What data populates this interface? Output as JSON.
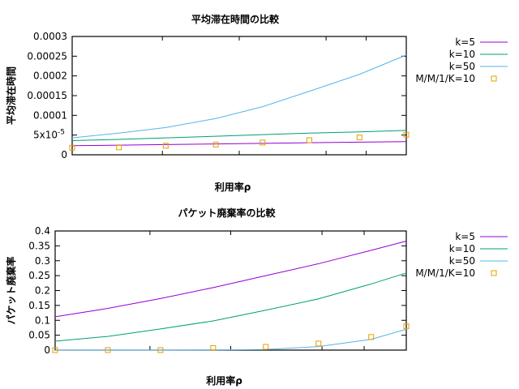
{
  "chart_data": [
    {
      "type": "line",
      "title": "平均滞在時間の比較",
      "xlabel": "利用率ρ",
      "ylabel": "平均滞在時間",
      "ylim": [
        0,
        0.0003
      ],
      "xlim": [
        0,
        1
      ],
      "yticks": [
        {
          "v": 0,
          "label": "0"
        },
        {
          "v": 5e-05,
          "label": "5x10",
          "sup": "-5"
        },
        {
          "v": 0.0001,
          "label": "0.0001"
        },
        {
          "v": 0.00015,
          "label": "0.00015"
        },
        {
          "v": 0.0002,
          "label": "0.0002"
        },
        {
          "v": 0.00025,
          "label": "0.00025"
        },
        {
          "v": 0.0003,
          "label": "0.0003"
        }
      ],
      "xticks": [
        0,
        0.27,
        0.5,
        0.76,
        0.88
      ],
      "legend_position": "top-right outside",
      "grid": false,
      "series": [
        {
          "name": "k=5",
          "color": "#9400d3",
          "style": "line",
          "x": [
            0,
            0.14,
            0.28,
            0.43,
            0.57,
            0.71,
            0.86,
            1.0
          ],
          "y": [
            2.3e-05,
            2.45e-05,
            2.6e-05,
            2.75e-05,
            2.9e-05,
            3.05e-05,
            3.2e-05,
            3.35e-05
          ]
        },
        {
          "name": "k=10",
          "color": "#009e73",
          "style": "line",
          "x": [
            0,
            0.14,
            0.28,
            0.43,
            0.57,
            0.71,
            0.86,
            1.0
          ],
          "y": [
            3.6e-05,
            3.9e-05,
            4.3e-05,
            4.7e-05,
            5.1e-05,
            5.5e-05,
            5.8e-05,
            6.2e-05
          ]
        },
        {
          "name": "k=50",
          "color": "#56b4e9",
          "style": "line",
          "x": [
            0,
            0.14,
            0.28,
            0.43,
            0.57,
            0.71,
            0.86,
            1.0
          ],
          "y": [
            4.3e-05,
            5.5e-05,
            6.9e-05,
            9.2e-05,
            0.000122,
            0.000161,
            0.000204,
            0.000253
          ]
        },
        {
          "name": "M/M/1/K=10",
          "color": "#e69f00",
          "style": "points",
          "x": [
            0,
            0.14,
            0.28,
            0.43,
            0.57,
            0.71,
            0.86,
            1.0
          ],
          "y": [
            1.8e-05,
            1.9e-05,
            2.3e-05,
            2.6e-05,
            3.1e-05,
            3.7e-05,
            4.4e-05,
            5.1e-05
          ]
        }
      ]
    },
    {
      "type": "line",
      "title": "パケット廃棄率の比較",
      "xlabel": "利用率ρ",
      "ylabel": "パケット廃棄率",
      "ylim": [
        0,
        0.4
      ],
      "xlim": [
        0,
        1
      ],
      "yticks": [
        {
          "v": 0,
          "label": "0"
        },
        {
          "v": 0.05,
          "label": "0.05"
        },
        {
          "v": 0.1,
          "label": "0.1"
        },
        {
          "v": 0.15,
          "label": "0.15"
        },
        {
          "v": 0.2,
          "label": "0.2"
        },
        {
          "v": 0.25,
          "label": "0.25"
        },
        {
          "v": 0.3,
          "label": "0.3"
        },
        {
          "v": 0.35,
          "label": "0.35"
        },
        {
          "v": 0.4,
          "label": "0.4"
        }
      ],
      "xticks": [
        0,
        0.27,
        0.5,
        0.76,
        0.88
      ],
      "legend_position": "top-right outside",
      "grid": false,
      "series": [
        {
          "name": "k=5",
          "color": "#9400d3",
          "style": "line",
          "x": [
            0,
            0.15,
            0.3,
            0.45,
            0.6,
            0.75,
            0.9,
            1.0
          ],
          "y": [
            0.112,
            0.14,
            0.173,
            0.21,
            0.25,
            0.29,
            0.335,
            0.366
          ]
        },
        {
          "name": "k=10",
          "color": "#009e73",
          "style": "line",
          "x": [
            0,
            0.15,
            0.3,
            0.45,
            0.6,
            0.75,
            0.9,
            1.0
          ],
          "y": [
            0.03,
            0.046,
            0.071,
            0.098,
            0.134,
            0.172,
            0.222,
            0.259
          ]
        },
        {
          "name": "k=50",
          "color": "#56b4e9",
          "style": "line",
          "x": [
            0,
            0.15,
            0.3,
            0.45,
            0.6,
            0.75,
            0.9,
            1.0
          ],
          "y": [
            0,
            0,
            0,
            0.0003,
            0.002,
            0.012,
            0.036,
            0.07
          ]
        },
        {
          "name": "M/M/1/K=10",
          "color": "#e69f00",
          "style": "points",
          "x": [
            0,
            0.15,
            0.3,
            0.45,
            0.6,
            0.75,
            0.9,
            1.0
          ],
          "y": [
            0.0,
            0.0,
            0.0,
            0.007,
            0.011,
            0.022,
            0.044,
            0.08
          ]
        }
      ]
    }
  ]
}
